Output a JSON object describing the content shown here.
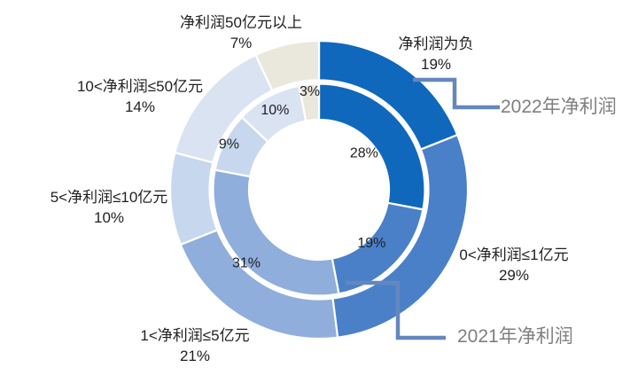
{
  "chart_data": {
    "type": "donut",
    "title": "",
    "description": "Double-ring donut chart of net profit distribution",
    "categories": [
      "净利润为负",
      "0<净利润≤1亿元",
      "1<净利润≤5亿元",
      "5<净利润≤10亿元",
      "10<净利润≤50亿元",
      "净利润50亿元以上"
    ],
    "series": [
      {
        "name": "2022年净利润",
        "ring": "outer",
        "values": [
          19,
          29,
          21,
          10,
          14,
          7
        ],
        "labels": [
          "19%",
          "29%",
          "21%",
          "10%",
          "14%",
          "7%"
        ]
      },
      {
        "name": "2021年净利润",
        "ring": "inner",
        "values": [
          28,
          19,
          31,
          9,
          10,
          3
        ],
        "labels": [
          "28%",
          "19%",
          "31%",
          "9%",
          "10%",
          "3%"
        ]
      }
    ],
    "colors": [
      "#0F68BC",
      "#4A80C8",
      "#8FAEDC",
      "#C7D7EE",
      "#DAE3F2",
      "#EAE8DC"
    ],
    "start_angle_deg": 0,
    "direction": "clockwise",
    "segment_border_color": "#FFFFFF",
    "label_color": "#1F1F1F",
    "callout_line_color": "#6487BE",
    "callout_text_color": "#7F7F7F",
    "background": "#FFFFFF",
    "legend_position": "callout-labels-right"
  }
}
